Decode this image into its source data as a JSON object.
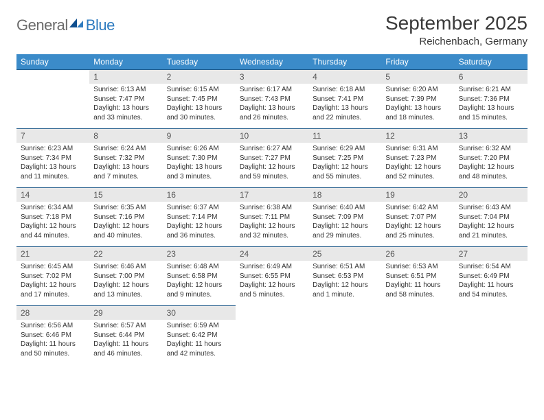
{
  "brand": {
    "part1": "General",
    "part2": "Blue"
  },
  "title": "September 2025",
  "location": "Reichenbach, Germany",
  "colors": {
    "header_bg": "#3b8bc9",
    "header_text": "#ffffff",
    "band_bg": "#e8e8e8",
    "band_border": "#1f5a8a",
    "logo_gray": "#6b6b6b",
    "logo_blue": "#2f7cc0"
  },
  "weekdays": [
    "Sunday",
    "Monday",
    "Tuesday",
    "Wednesday",
    "Thursday",
    "Friday",
    "Saturday"
  ],
  "weeks": [
    [
      null,
      {
        "n": "1",
        "sr": "Sunrise: 6:13 AM",
        "ss": "Sunset: 7:47 PM",
        "dl": "Daylight: 13 hours and 33 minutes."
      },
      {
        "n": "2",
        "sr": "Sunrise: 6:15 AM",
        "ss": "Sunset: 7:45 PM",
        "dl": "Daylight: 13 hours and 30 minutes."
      },
      {
        "n": "3",
        "sr": "Sunrise: 6:17 AM",
        "ss": "Sunset: 7:43 PM",
        "dl": "Daylight: 13 hours and 26 minutes."
      },
      {
        "n": "4",
        "sr": "Sunrise: 6:18 AM",
        "ss": "Sunset: 7:41 PM",
        "dl": "Daylight: 13 hours and 22 minutes."
      },
      {
        "n": "5",
        "sr": "Sunrise: 6:20 AM",
        "ss": "Sunset: 7:39 PM",
        "dl": "Daylight: 13 hours and 18 minutes."
      },
      {
        "n": "6",
        "sr": "Sunrise: 6:21 AM",
        "ss": "Sunset: 7:36 PM",
        "dl": "Daylight: 13 hours and 15 minutes."
      }
    ],
    [
      {
        "n": "7",
        "sr": "Sunrise: 6:23 AM",
        "ss": "Sunset: 7:34 PM",
        "dl": "Daylight: 13 hours and 11 minutes."
      },
      {
        "n": "8",
        "sr": "Sunrise: 6:24 AM",
        "ss": "Sunset: 7:32 PM",
        "dl": "Daylight: 13 hours and 7 minutes."
      },
      {
        "n": "9",
        "sr": "Sunrise: 6:26 AM",
        "ss": "Sunset: 7:30 PM",
        "dl": "Daylight: 13 hours and 3 minutes."
      },
      {
        "n": "10",
        "sr": "Sunrise: 6:27 AM",
        "ss": "Sunset: 7:27 PM",
        "dl": "Daylight: 12 hours and 59 minutes."
      },
      {
        "n": "11",
        "sr": "Sunrise: 6:29 AM",
        "ss": "Sunset: 7:25 PM",
        "dl": "Daylight: 12 hours and 55 minutes."
      },
      {
        "n": "12",
        "sr": "Sunrise: 6:31 AM",
        "ss": "Sunset: 7:23 PM",
        "dl": "Daylight: 12 hours and 52 minutes."
      },
      {
        "n": "13",
        "sr": "Sunrise: 6:32 AM",
        "ss": "Sunset: 7:20 PM",
        "dl": "Daylight: 12 hours and 48 minutes."
      }
    ],
    [
      {
        "n": "14",
        "sr": "Sunrise: 6:34 AM",
        "ss": "Sunset: 7:18 PM",
        "dl": "Daylight: 12 hours and 44 minutes."
      },
      {
        "n": "15",
        "sr": "Sunrise: 6:35 AM",
        "ss": "Sunset: 7:16 PM",
        "dl": "Daylight: 12 hours and 40 minutes."
      },
      {
        "n": "16",
        "sr": "Sunrise: 6:37 AM",
        "ss": "Sunset: 7:14 PM",
        "dl": "Daylight: 12 hours and 36 minutes."
      },
      {
        "n": "17",
        "sr": "Sunrise: 6:38 AM",
        "ss": "Sunset: 7:11 PM",
        "dl": "Daylight: 12 hours and 32 minutes."
      },
      {
        "n": "18",
        "sr": "Sunrise: 6:40 AM",
        "ss": "Sunset: 7:09 PM",
        "dl": "Daylight: 12 hours and 29 minutes."
      },
      {
        "n": "19",
        "sr": "Sunrise: 6:42 AM",
        "ss": "Sunset: 7:07 PM",
        "dl": "Daylight: 12 hours and 25 minutes."
      },
      {
        "n": "20",
        "sr": "Sunrise: 6:43 AM",
        "ss": "Sunset: 7:04 PM",
        "dl": "Daylight: 12 hours and 21 minutes."
      }
    ],
    [
      {
        "n": "21",
        "sr": "Sunrise: 6:45 AM",
        "ss": "Sunset: 7:02 PM",
        "dl": "Daylight: 12 hours and 17 minutes."
      },
      {
        "n": "22",
        "sr": "Sunrise: 6:46 AM",
        "ss": "Sunset: 7:00 PM",
        "dl": "Daylight: 12 hours and 13 minutes."
      },
      {
        "n": "23",
        "sr": "Sunrise: 6:48 AM",
        "ss": "Sunset: 6:58 PM",
        "dl": "Daylight: 12 hours and 9 minutes."
      },
      {
        "n": "24",
        "sr": "Sunrise: 6:49 AM",
        "ss": "Sunset: 6:55 PM",
        "dl": "Daylight: 12 hours and 5 minutes."
      },
      {
        "n": "25",
        "sr": "Sunrise: 6:51 AM",
        "ss": "Sunset: 6:53 PM",
        "dl": "Daylight: 12 hours and 1 minute."
      },
      {
        "n": "26",
        "sr": "Sunrise: 6:53 AM",
        "ss": "Sunset: 6:51 PM",
        "dl": "Daylight: 11 hours and 58 minutes."
      },
      {
        "n": "27",
        "sr": "Sunrise: 6:54 AM",
        "ss": "Sunset: 6:49 PM",
        "dl": "Daylight: 11 hours and 54 minutes."
      }
    ],
    [
      {
        "n": "28",
        "sr": "Sunrise: 6:56 AM",
        "ss": "Sunset: 6:46 PM",
        "dl": "Daylight: 11 hours and 50 minutes."
      },
      {
        "n": "29",
        "sr": "Sunrise: 6:57 AM",
        "ss": "Sunset: 6:44 PM",
        "dl": "Daylight: 11 hours and 46 minutes."
      },
      {
        "n": "30",
        "sr": "Sunrise: 6:59 AM",
        "ss": "Sunset: 6:42 PM",
        "dl": "Daylight: 11 hours and 42 minutes."
      },
      null,
      null,
      null,
      null
    ]
  ]
}
